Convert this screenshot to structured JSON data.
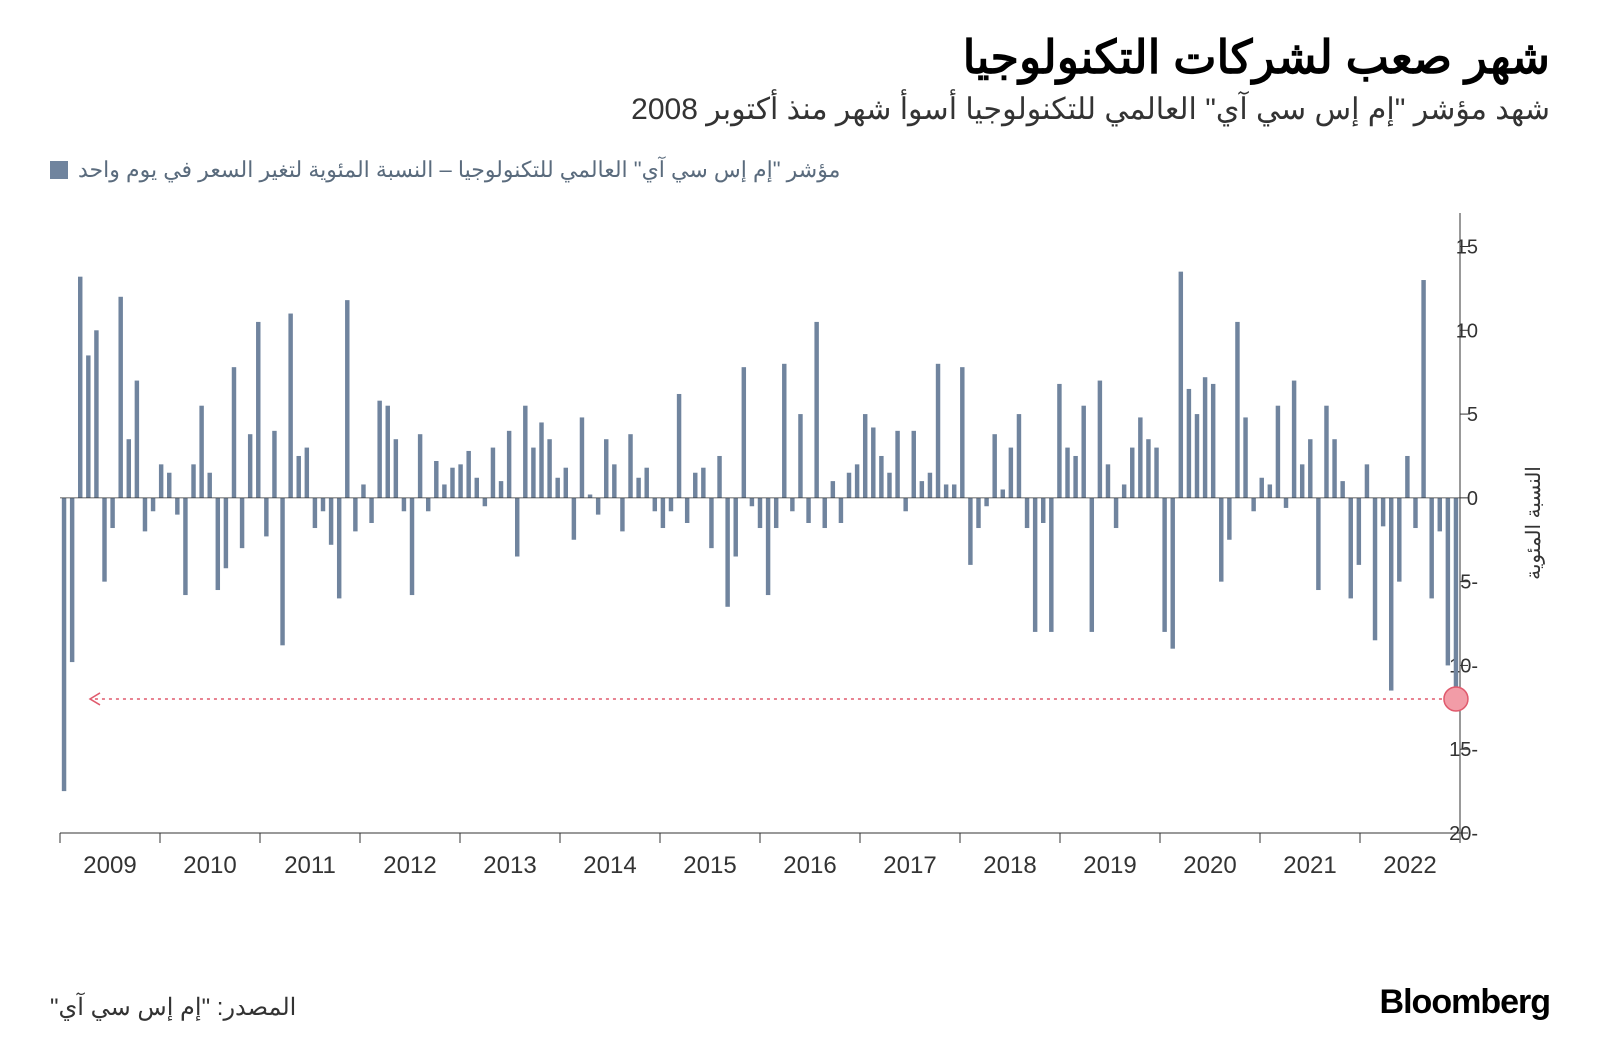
{
  "title": "شهر صعب لشركات التكنولوجيا",
  "subtitle": "شهد مؤشر \"إم إس سي آي\" العالمي للتكنولوجيا أسوأ شهر منذ أكتوبر 2008",
  "legend": {
    "label": "مؤشر \"إم إس سي آي\" العالمي للتكنولوجيا – النسبة المئوية لتغير السعر في يوم واحد",
    "swatch_color": "#70849e"
  },
  "source": "المصدر: \"إم إس سي آي\"",
  "brand": "Bloomberg",
  "chart": {
    "type": "bar",
    "y_axis": {
      "label": "النسبة المئوية",
      "min": -20,
      "max": 17,
      "ticks": [
        -20,
        -15,
        -10,
        -5,
        0,
        5,
        10,
        15
      ],
      "tick_color": "#333333",
      "tick_fontsize": 20,
      "label_color": "#333333",
      "label_fontsize": 20
    },
    "x_axis": {
      "labels": [
        "2009",
        "2010",
        "2011",
        "2012",
        "2013",
        "2014",
        "2015",
        "2016",
        "2017",
        "2018",
        "2019",
        "2020",
        "2021",
        "2022"
      ],
      "label_color": "#333333",
      "label_fontsize": 24,
      "tick_color": "#333333"
    },
    "bar_color": "#70849e",
    "background_color": "#ffffff",
    "gridline_color": "#d5d5d5",
    "highlight": {
      "circle_color": "#f29ca7",
      "circle_stroke": "#e05a6d",
      "arrow_color": "#e05a6d",
      "y_value": -12
    },
    "values": [
      -17.5,
      -9.8,
      13.2,
      8.5,
      10.0,
      -5.0,
      -1.8,
      12.0,
      3.5,
      7.0,
      -2.0,
      -0.8,
      2.0,
      1.5,
      -1.0,
      -5.8,
      2.0,
      5.5,
      1.5,
      -5.5,
      -4.2,
      7.8,
      -3.0,
      3.8,
      10.5,
      -2.3,
      4.0,
      -8.8,
      11.0,
      2.5,
      3.0,
      -1.8,
      -0.8,
      -2.8,
      -6.0,
      11.8,
      -2.0,
      0.8,
      -1.5,
      5.8,
      5.5,
      3.5,
      -0.8,
      -5.8,
      3.8,
      -0.8,
      2.2,
      0.8,
      1.8,
      2.0,
      2.8,
      1.2,
      -0.5,
      3.0,
      1.0,
      4.0,
      -3.5,
      5.5,
      3.0,
      4.5,
      3.5,
      1.2,
      1.8,
      -2.5,
      4.8,
      0.2,
      -1.0,
      3.5,
      2.0,
      -2.0,
      3.8,
      1.2,
      1.8,
      -0.8,
      -1.8,
      -0.8,
      6.2,
      -1.5,
      1.5,
      1.8,
      -3.0,
      2.5,
      -6.5,
      -3.5,
      7.8,
      -0.5,
      -1.8,
      -5.8,
      -1.8,
      8.0,
      -0.8,
      5.0,
      -1.5,
      10.5,
      -1.8,
      1.0,
      -1.5,
      1.5,
      2.0,
      5.0,
      4.2,
      2.5,
      1.5,
      4.0,
      -0.8,
      4.0,
      1.0,
      1.5,
      8.0,
      0.8,
      0.8,
      7.8,
      -4.0,
      -1.8,
      -0.5,
      3.8,
      0.5,
      3.0,
      5.0,
      -1.8,
      -8.0,
      -1.5,
      -8.0,
      6.8,
      3.0,
      2.5,
      5.5,
      -8.0,
      7.0,
      2.0,
      -1.8,
      0.8,
      3.0,
      4.8,
      3.5,
      3.0,
      -8.0,
      -9,
      13.5,
      6.5,
      5.0,
      7.2,
      6.8,
      -5.0,
      -2.5,
      10.5,
      4.8,
      -0.8,
      1.2,
      0.8,
      5.5,
      -0.6,
      7.0,
      2.0,
      3.5,
      -5.5,
      5.5,
      3.5,
      1.0,
      -6.0,
      -4.0,
      2.0,
      -8.5,
      -1.7,
      -11.5,
      -5,
      2.5,
      -1.8,
      13.0,
      -6.0,
      -2.0,
      -10.0,
      -12.0
    ]
  }
}
